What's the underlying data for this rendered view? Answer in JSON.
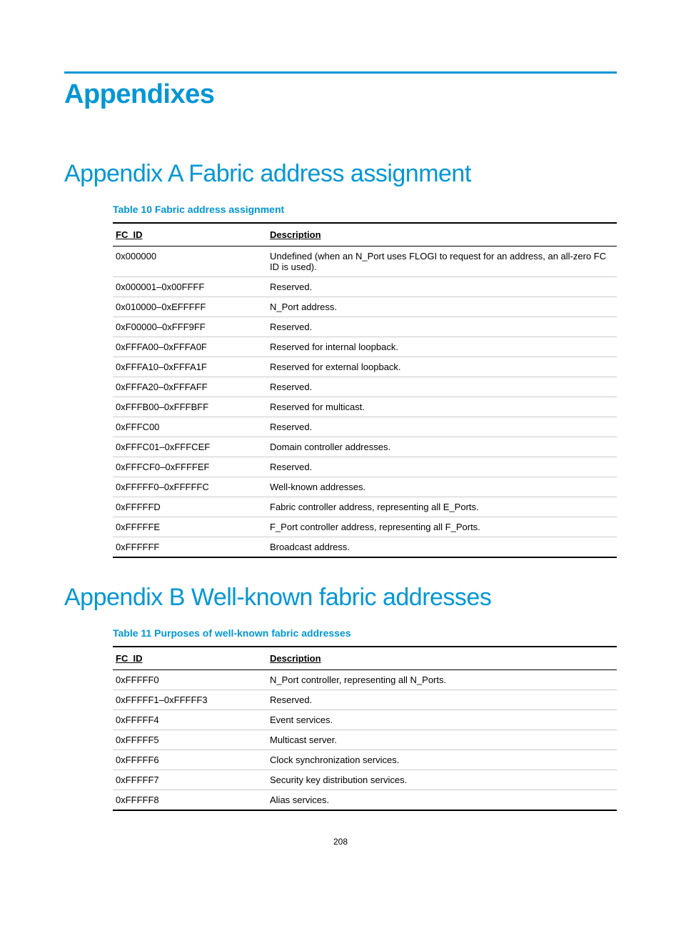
{
  "colors": {
    "accent": "#0096d6",
    "text": "#000000",
    "rule": "#000000",
    "row_border": "#cccccc",
    "background": "#ffffff"
  },
  "typography": {
    "h1_size": 38,
    "h2_size": 34,
    "caption_size": 14,
    "body_size": 13,
    "page_num_size": 12
  },
  "page_title": "Appendixes",
  "section_a": {
    "title": "Appendix A Fabric address assignment",
    "table_caption": "Table 10 Fabric address assignment",
    "columns": [
      "FC_ID",
      "Description"
    ],
    "rows": [
      [
        "0x000000",
        "Undefined (when an N_Port uses FLOGI to request for an address, an all-zero FC ID is used)."
      ],
      [
        "0x000001–0x00FFFF",
        "Reserved."
      ],
      [
        "0x010000–0xEFFFFF",
        "N_Port address."
      ],
      [
        "0xF00000–0xFFF9FF",
        "Reserved."
      ],
      [
        "0xFFFA00–0xFFFA0F",
        "Reserved for internal loopback."
      ],
      [
        "0xFFFA10–0xFFFA1F",
        "Reserved for external loopback."
      ],
      [
        "0xFFFA20–0xFFFAFF",
        "Reserved."
      ],
      [
        "0xFFFB00–0xFFFBFF",
        "Reserved for multicast."
      ],
      [
        "0xFFFC00",
        "Reserved."
      ],
      [
        "0xFFFC01–0xFFFCEF",
        "Domain controller addresses."
      ],
      [
        "0xFFFCF0–0xFFFFEF",
        "Reserved."
      ],
      [
        "0xFFFFF0–0xFFFFFC",
        "Well-known addresses."
      ],
      [
        "0xFFFFFD",
        "Fabric controller address, representing all E_Ports."
      ],
      [
        "0xFFFFFE",
        "F_Port controller address, representing all F_Ports."
      ],
      [
        "0xFFFFFF",
        "Broadcast address."
      ]
    ]
  },
  "section_b": {
    "title": "Appendix B Well-known fabric addresses",
    "table_caption": "Table 11 Purposes of well-known fabric addresses",
    "columns": [
      "FC_ID",
      "Description"
    ],
    "rows": [
      [
        "0xFFFFF0",
        "N_Port controller, representing all N_Ports."
      ],
      [
        "0xFFFFF1–0xFFFFF3",
        "Reserved."
      ],
      [
        "0xFFFFF4",
        "Event services."
      ],
      [
        "0xFFFFF5",
        "Multicast server."
      ],
      [
        "0xFFFFF6",
        "Clock synchronization services."
      ],
      [
        "0xFFFFF7",
        "Security key distribution services."
      ],
      [
        "0xFFFFF8",
        "Alias services."
      ]
    ]
  },
  "page_number": "208"
}
